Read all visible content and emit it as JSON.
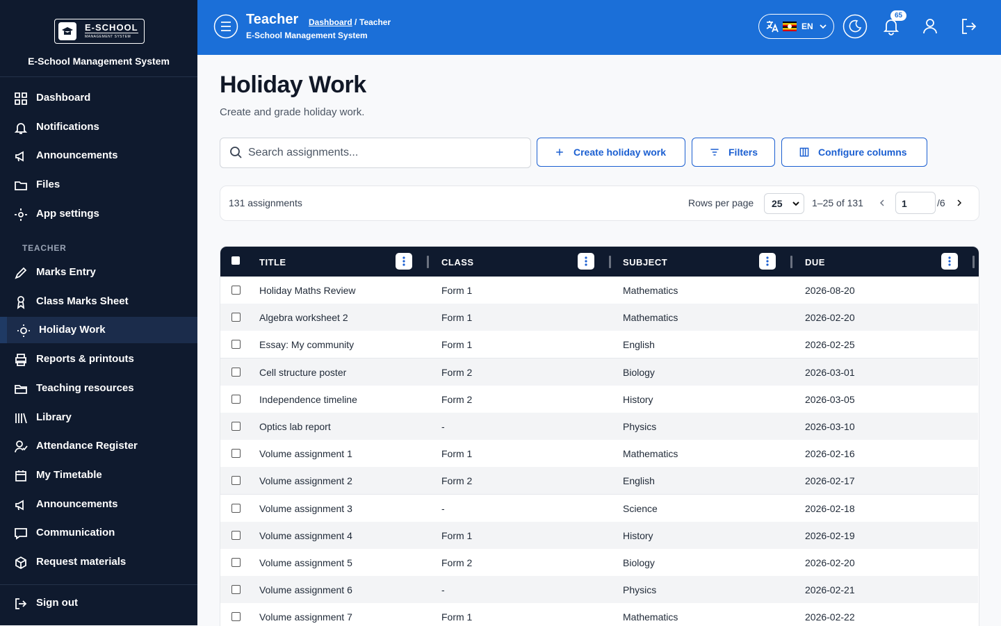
{
  "sidebar": {
    "logo_text": "E-SCHOOL",
    "logo_sub": "MANAGEMENT SYSTEM",
    "app_name": "E-School Management System",
    "nav": [
      "Dashboard",
      "Notifications",
      "Announcements",
      "Files",
      "App settings"
    ],
    "section": "TEACHER",
    "teacher_nav": [
      "Marks Entry",
      "Class Marks Sheet",
      "Holiday Work",
      "Reports & printouts",
      "Teaching resources",
      "Library",
      "Attendance Register",
      "My Timetable",
      "Announcements",
      "Communication",
      "Request materials"
    ],
    "active": 2,
    "sign_out": "Sign out"
  },
  "header": {
    "title": "Teacher",
    "breadcrumb_link": "Dashboard",
    "breadcrumb_separator": "/",
    "breadcrumb_current": "Teacher",
    "subtitle": "E-School Management System",
    "language": "EN",
    "notification_count": 65
  },
  "page": {
    "title": "Holiday Work",
    "subtitle": "Create and grade holiday work.",
    "search_placeholder": "Search assignments...",
    "buttons": [
      "Create holiday work",
      "Filters",
      "Configure columns"
    ],
    "count_label": "131 assignments",
    "rows_per_page_label": "Rows per page",
    "rows_per_page": 25,
    "range": "1–25 of 131",
    "current_page": 1,
    "page_total": "/6"
  },
  "table": {
    "columns": [
      "TITLE",
      "CLASS",
      "SUBJECT",
      "DUE"
    ],
    "rows": [
      [
        "Holiday Maths Review",
        "Form 1",
        "Mathematics",
        "2026-08-20"
      ],
      [
        "Algebra worksheet 2",
        "Form 1",
        "Mathematics",
        "2026-02-20"
      ],
      [
        "Essay: My community",
        "Form 1",
        "English",
        "2026-02-25"
      ],
      [
        "Cell structure poster",
        "Form 2",
        "Biology",
        "2026-03-01"
      ],
      [
        "Independence timeline",
        "Form 2",
        "History",
        "2026-03-05"
      ],
      [
        "Optics lab report",
        "-",
        "Physics",
        "2026-03-10"
      ],
      [
        "Volume assignment 1",
        "Form 1",
        "Mathematics",
        "2026-02-16"
      ],
      [
        "Volume assignment 2",
        "Form 2",
        "English",
        "2026-02-17"
      ],
      [
        "Volume assignment 3",
        "-",
        "Science",
        "2026-02-18"
      ],
      [
        "Volume assignment 4",
        "Form 1",
        "History",
        "2026-02-19"
      ],
      [
        "Volume assignment 5",
        "Form 2",
        "Biology",
        "2026-02-20"
      ],
      [
        "Volume assignment 6",
        "-",
        "Physics",
        "2026-02-21"
      ],
      [
        "Volume assignment 7",
        "Form 1",
        "Mathematics",
        "2026-02-22"
      ]
    ]
  }
}
